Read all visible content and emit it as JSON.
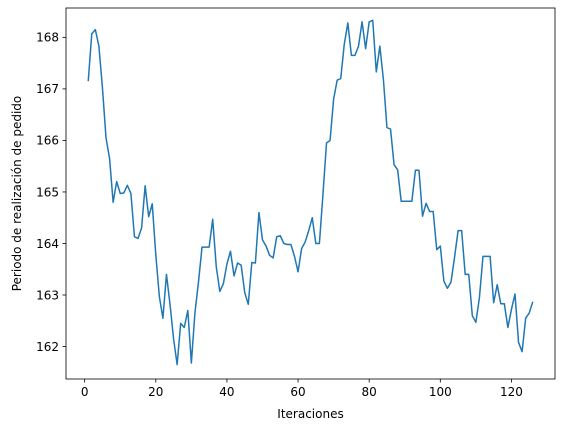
{
  "chart_data": {
    "type": "line",
    "title": "",
    "xlabel": "Iteraciones",
    "ylabel": "Periodo de realización de pedido",
    "xlim": [
      -5.25,
      132.25
    ],
    "ylim": [
      161.37,
      168.57
    ],
    "xticks": [
      0,
      20,
      40,
      60,
      80,
      100,
      120
    ],
    "yticks": [
      162,
      163,
      164,
      165,
      166,
      167,
      168
    ],
    "grid": false,
    "legend": "none",
    "series": [
      {
        "color": "#1f77b4",
        "x": [
          1,
          2,
          3,
          4,
          5,
          6,
          7,
          8,
          9,
          10,
          11,
          12,
          13,
          14,
          15,
          16,
          17,
          18,
          19,
          20,
          21,
          22,
          23,
          24,
          25,
          26,
          27,
          28,
          29,
          30,
          31,
          32,
          33,
          34,
          35,
          36,
          37,
          38,
          39,
          40,
          41,
          42,
          43,
          44,
          45,
          46,
          47,
          48,
          49,
          50,
          51,
          52,
          53,
          54,
          55,
          56,
          57,
          58,
          59,
          60,
          61,
          62,
          63,
          64,
          65,
          66,
          67,
          68,
          69,
          70,
          71,
          72,
          73,
          74,
          75,
          76,
          77,
          78,
          79,
          80,
          81,
          82,
          83,
          84,
          85,
          86,
          87,
          88,
          89,
          90,
          91,
          92,
          93,
          94,
          95,
          96,
          97,
          98,
          99,
          100,
          101,
          102,
          103,
          104,
          105,
          106,
          107,
          108,
          109,
          110,
          111,
          112,
          113,
          114,
          115,
          116,
          117,
          118,
          119,
          120,
          121,
          122,
          123,
          124,
          125,
          126
        ],
        "y": [
          167.15,
          168.07,
          168.15,
          167.83,
          167.02,
          166.05,
          165.65,
          164.8,
          165.2,
          164.97,
          164.98,
          165.13,
          164.97,
          164.13,
          164.1,
          164.3,
          165.12,
          164.52,
          164.77,
          163.78,
          162.97,
          162.55,
          163.4,
          162.82,
          162.15,
          161.65,
          162.45,
          162.37,
          162.7,
          161.68,
          162.65,
          163.25,
          163.93,
          163.93,
          163.93,
          164.47,
          163.55,
          163.07,
          163.22,
          163.6,
          163.85,
          163.37,
          163.62,
          163.58,
          163.05,
          162.82,
          163.63,
          163.62,
          164.6,
          164.07,
          163.95,
          163.77,
          163.72,
          164.13,
          164.15,
          164.0,
          163.98,
          163.98,
          163.75,
          163.45,
          163.9,
          164.03,
          164.25,
          164.5,
          164.0,
          164.0,
          164.95,
          165.95,
          166.0,
          166.8,
          167.17,
          167.2,
          167.87,
          168.28,
          167.65,
          167.65,
          167.83,
          168.3,
          167.78,
          168.3,
          168.33,
          167.33,
          167.83,
          167.18,
          166.25,
          166.22,
          165.53,
          165.43,
          164.82,
          164.82,
          164.82,
          164.82,
          165.42,
          165.42,
          164.53,
          164.78,
          164.62,
          164.62,
          163.88,
          163.95,
          163.27,
          163.13,
          163.25,
          163.73,
          164.25,
          164.25,
          163.4,
          163.4,
          162.6,
          162.47,
          162.95,
          163.75,
          163.75,
          163.75,
          162.85,
          163.2,
          162.83,
          162.83,
          162.37,
          162.72,
          163.02,
          162.08,
          161.9,
          162.55,
          162.65,
          162.87
        ]
      }
    ]
  }
}
